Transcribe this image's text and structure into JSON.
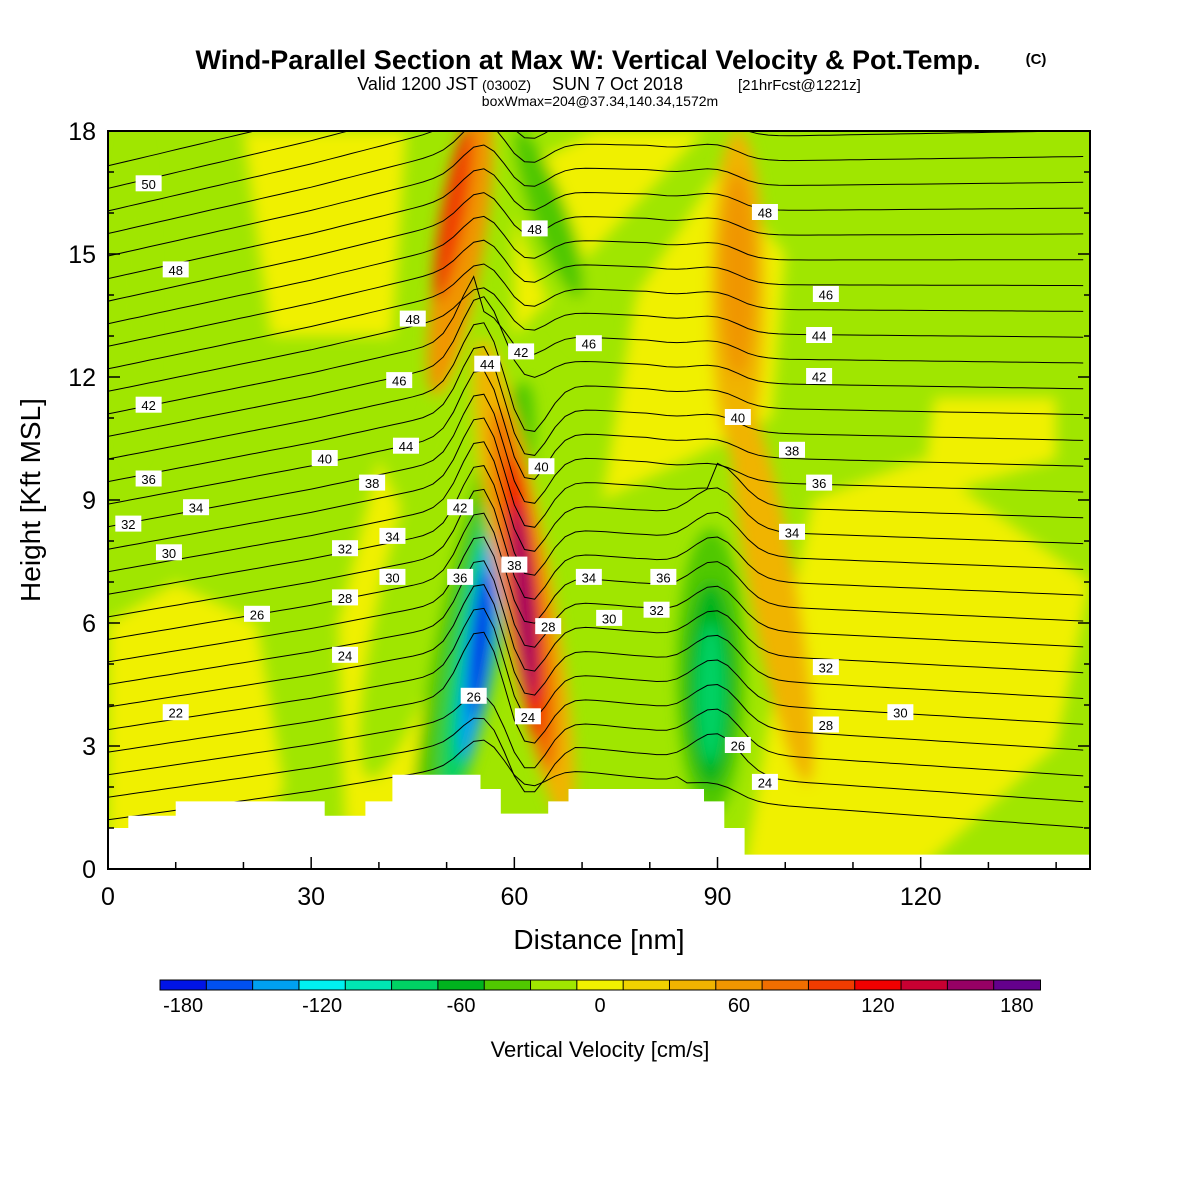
{
  "header": {
    "title": "Wind-Parallel Section at Max W: Vertical Velocity & Pot.Temp.",
    "title_mark": "(C)",
    "valid_prefix": "Valid 1200 JST",
    "valid_utc": "(0300Z)",
    "valid_date": "SUN 7 Oct 2018",
    "valid_fcst": "[21hrFcst@1221z]",
    "boxwmax": "boxWmax=204@37.34,140.34,1572m"
  },
  "chart_data": {
    "type": "heatmap",
    "xlabel": "Distance [nm]",
    "ylabel": "Height [Kft MSL]",
    "xlim": [
      0,
      145
    ],
    "ylim": [
      0,
      18
    ],
    "xticks": [
      0,
      30,
      60,
      90,
      120
    ],
    "yticks": [
      0,
      3,
      6,
      9,
      12,
      15,
      18
    ],
    "colorbar": {
      "label": "Vertical Velocity [cm/s]",
      "ticks": [
        -180,
        -120,
        -60,
        0,
        60,
        120,
        180
      ],
      "range": [
        -190,
        190
      ],
      "colors": [
        "#0014e6",
        "#0050f0",
        "#00a0f0",
        "#00f0f0",
        "#00e6b4",
        "#00d264",
        "#00b41e",
        "#50c800",
        "#a0e600",
        "#f0f000",
        "#f0d200",
        "#f0b400",
        "#f09600",
        "#f06e00",
        "#f03c00",
        "#f00000",
        "#c80032",
        "#960064",
        "#64008c"
      ]
    },
    "vertical_velocity_features": [
      {
        "kind": "downdraft",
        "x": 55,
        "y": 5.5,
        "value": -180
      },
      {
        "kind": "updraft",
        "x": 61,
        "y": 6.5,
        "value": 150
      },
      {
        "kind": "updraft",
        "x": 51,
        "y": 15.5,
        "value": 100
      },
      {
        "kind": "downdraft",
        "x": 66,
        "y": 16,
        "value": -50
      },
      {
        "kind": "downdraft",
        "x": 89,
        "y": 4.5,
        "value": -90
      },
      {
        "kind": "updraft",
        "x": 93,
        "y": 13,
        "value": 60
      },
      {
        "kind": "updraft",
        "x": 99,
        "y": 7,
        "value": 40
      }
    ],
    "potential_temperature_labels": [
      {
        "text": "50",
        "x": 6,
        "y": 16.7
      },
      {
        "text": "48",
        "x": 10,
        "y": 14.6
      },
      {
        "text": "48",
        "x": 45,
        "y": 13.4
      },
      {
        "text": "48",
        "x": 63,
        "y": 15.6
      },
      {
        "text": "48",
        "x": 97,
        "y": 16.0
      },
      {
        "text": "46",
        "x": 43,
        "y": 11.9
      },
      {
        "text": "46",
        "x": 71,
        "y": 12.8
      },
      {
        "text": "46",
        "x": 106,
        "y": 14.0
      },
      {
        "text": "44",
        "x": 56,
        "y": 12.3
      },
      {
        "text": "44",
        "x": 44,
        "y": 10.3
      },
      {
        "text": "44",
        "x": 105,
        "y": 13.0
      },
      {
        "text": "42",
        "x": 6,
        "y": 11.3
      },
      {
        "text": "42",
        "x": 61,
        "y": 12.6
      },
      {
        "text": "42",
        "x": 52,
        "y": 8.8
      },
      {
        "text": "42",
        "x": 105,
        "y": 12.0
      },
      {
        "text": "40",
        "x": 32,
        "y": 10.0
      },
      {
        "text": "40",
        "x": 64,
        "y": 9.8
      },
      {
        "text": "40",
        "x": 93,
        "y": 11.0
      },
      {
        "text": "38",
        "x": 39,
        "y": 9.4
      },
      {
        "text": "38",
        "x": 60,
        "y": 7.4
      },
      {
        "text": "38",
        "x": 101,
        "y": 10.2
      },
      {
        "text": "36",
        "x": 6,
        "y": 9.5
      },
      {
        "text": "36",
        "x": 52,
        "y": 7.1
      },
      {
        "text": "36",
        "x": 82,
        "y": 7.1
      },
      {
        "text": "36",
        "x": 105,
        "y": 9.4
      },
      {
        "text": "34",
        "x": 13,
        "y": 8.8
      },
      {
        "text": "34",
        "x": 42,
        "y": 8.1
      },
      {
        "text": "34",
        "x": 71,
        "y": 7.1
      },
      {
        "text": "34",
        "x": 101,
        "y": 8.2
      },
      {
        "text": "32",
        "x": 3,
        "y": 8.4
      },
      {
        "text": "32",
        "x": 35,
        "y": 7.8
      },
      {
        "text": "32",
        "x": 81,
        "y": 6.3
      },
      {
        "text": "32",
        "x": 106,
        "y": 4.9
      },
      {
        "text": "30",
        "x": 9,
        "y": 7.7
      },
      {
        "text": "30",
        "x": 42,
        "y": 7.1
      },
      {
        "text": "30",
        "x": 74,
        "y": 6.1
      },
      {
        "text": "30",
        "x": 117,
        "y": 3.8
      },
      {
        "text": "28",
        "x": 35,
        "y": 6.6
      },
      {
        "text": "28",
        "x": 65,
        "y": 5.9
      },
      {
        "text": "28",
        "x": 106,
        "y": 3.5
      },
      {
        "text": "26",
        "x": 22,
        "y": 6.2
      },
      {
        "text": "26",
        "x": 54,
        "y": 4.2
      },
      {
        "text": "26",
        "x": 93,
        "y": 3.0
      },
      {
        "text": "24",
        "x": 35,
        "y": 5.2
      },
      {
        "text": "24",
        "x": 62,
        "y": 3.7
      },
      {
        "text": "24",
        "x": 97,
        "y": 2.1
      },
      {
        "text": "22",
        "x": 10,
        "y": 3.8
      }
    ],
    "terrain_profile": [
      [
        0,
        1.0
      ],
      [
        3,
        1.0
      ],
      [
        3,
        1.3
      ],
      [
        10,
        1.3
      ],
      [
        10,
        1.65
      ],
      [
        32,
        1.65
      ],
      [
        32,
        1.3
      ],
      [
        38,
        1.3
      ],
      [
        38,
        1.65
      ],
      [
        42,
        1.65
      ],
      [
        42,
        2.3
      ],
      [
        55,
        2.3
      ],
      [
        55,
        1.95
      ],
      [
        58,
        1.95
      ],
      [
        58,
        1.35
      ],
      [
        65,
        1.35
      ],
      [
        65,
        1.65
      ],
      [
        68,
        1.65
      ],
      [
        68,
        1.95
      ],
      [
        88,
        1.95
      ],
      [
        88,
        1.65
      ],
      [
        91,
        1.65
      ],
      [
        91,
        1.0
      ],
      [
        94,
        1.0
      ],
      [
        94,
        0.35
      ],
      [
        145,
        0.35
      ]
    ]
  }
}
